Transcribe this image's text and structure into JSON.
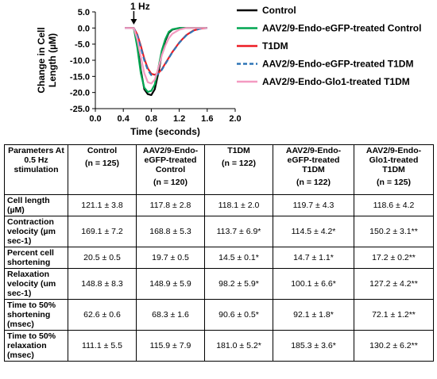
{
  "chart_data": {
    "type": "line",
    "annotation": "1 Hz",
    "xlabel": "Time (seconds)",
    "ylabel": "Change in Cell Length (µM)",
    "xlim": [
      0.0,
      2.0
    ],
    "ylim": [
      -25.0,
      5.0
    ],
    "x_ticks": [
      "0.0",
      "0.4",
      "0.8",
      "1.2",
      "1.6",
      "2.0"
    ],
    "y_ticks": [
      "5.0",
      "0.0",
      "-5.0",
      "-10.0",
      "-15.0",
      "-20.0",
      "-25.0"
    ],
    "series": [
      {
        "name": "Control",
        "color": "#000000",
        "dash": "solid",
        "x": [
          0.42,
          0.55,
          0.6,
          0.65,
          0.7,
          0.75,
          0.8,
          0.85,
          0.9,
          0.95,
          1.0,
          1.05,
          1.1,
          1.2,
          1.3,
          1.4,
          1.6
        ],
        "y": [
          0.0,
          0.0,
          -5.0,
          -13.0,
          -19.0,
          -20.5,
          -20.8,
          -19.0,
          -14.0,
          -8.0,
          -4.0,
          -1.5,
          -0.5,
          0.0,
          0.0,
          0.0,
          0.0
        ]
      },
      {
        "name": "AAV2/9-Endo-eGFP-treated Control",
        "color": "#00a651",
        "dash": "solid",
        "x": [
          0.42,
          0.55,
          0.6,
          0.65,
          0.7,
          0.75,
          0.8,
          0.85,
          0.9,
          0.95,
          1.0,
          1.05,
          1.1,
          1.2,
          1.3,
          1.4,
          1.6
        ],
        "y": [
          0.0,
          0.0,
          -6.0,
          -14.0,
          -18.5,
          -19.8,
          -19.5,
          -17.5,
          -12.5,
          -7.0,
          -3.5,
          -1.2,
          -0.4,
          0.0,
          0.0,
          0.0,
          0.0
        ]
      },
      {
        "name": "T1DM",
        "color": "#ed1c24",
        "dash": "solid",
        "x": [
          0.42,
          0.55,
          0.6,
          0.65,
          0.7,
          0.75,
          0.8,
          0.85,
          0.9,
          0.95,
          1.0,
          1.1,
          1.2,
          1.3,
          1.4,
          1.5,
          1.6
        ],
        "y": [
          0.0,
          0.0,
          -2.0,
          -5.5,
          -9.5,
          -12.5,
          -14.2,
          -14.5,
          -14.0,
          -12.8,
          -11.0,
          -7.5,
          -4.5,
          -2.2,
          -0.8,
          -0.2,
          0.0
        ]
      },
      {
        "name": "AAV2/9-Endo-eGFP-treated T1DM",
        "color": "#2e75b6",
        "dash": "6,4",
        "x": [
          0.42,
          0.55,
          0.6,
          0.65,
          0.7,
          0.75,
          0.8,
          0.85,
          0.9,
          0.95,
          1.0,
          1.1,
          1.2,
          1.3,
          1.4,
          1.5,
          1.6
        ],
        "y": [
          0.0,
          0.0,
          -2.2,
          -6.0,
          -10.0,
          -13.0,
          -14.6,
          -14.8,
          -14.2,
          -13.0,
          -11.2,
          -7.6,
          -4.6,
          -2.3,
          -0.9,
          -0.2,
          0.0
        ]
      },
      {
        "name": "AAV2/9-Endo-Glo1-treated T1DM",
        "color": "#f49ac1",
        "dash": "solid",
        "x": [
          0.42,
          0.55,
          0.6,
          0.65,
          0.7,
          0.75,
          0.8,
          0.85,
          0.9,
          0.95,
          1.0,
          1.05,
          1.1,
          1.2,
          1.3,
          1.4,
          1.6
        ],
        "y": [
          0.0,
          0.0,
          -3.5,
          -9.0,
          -14.0,
          -16.8,
          -17.2,
          -16.0,
          -12.5,
          -8.5,
          -5.5,
          -3.2,
          -1.8,
          -0.5,
          0.0,
          0.0,
          0.0
        ]
      }
    ]
  },
  "table": {
    "header_param": "Parameters At 0.5 Hz stimulation",
    "columns": [
      {
        "label": "Control",
        "n": "(n = 125)"
      },
      {
        "label": "AAV2/9-Endo-eGFP-treated Control",
        "n": "(n = 120)"
      },
      {
        "label": "T1DM",
        "n": "(n = 122)"
      },
      {
        "label": "AAV2/9-Endo-eGFP-treated T1DM",
        "n": "(n = 122)"
      },
      {
        "label": "AAV2/9-Endo-Glo1-treated T1DM",
        "n": "(n = 125)"
      }
    ],
    "rows": [
      {
        "param": "Cell length (µM)",
        "values": [
          "121.1 ± 3.8",
          "117.8 ± 2.8",
          "118.1 ± 2.0",
          "119.7 ± 4.3",
          "118.6 ± 4.2"
        ]
      },
      {
        "param": "Contraction velocity (µm sec-1)",
        "values": [
          "169.1 ± 7.2",
          "168.8 ± 5.3",
          "113.7 ± 6.9*",
          "114.5 ± 4.2*",
          "150.2 ± 3.1**"
        ]
      },
      {
        "param": "Percent cell shortening",
        "values": [
          "20.5 ± 0.5",
          "19.7 ± 0.5",
          "14.5 ± 0.1*",
          "14.7 ± 1.1*",
          "17.2 ± 0.2**"
        ]
      },
      {
        "param": "Relaxation velocity (um sec-1)",
        "values": [
          "148.8 ± 8.3",
          "148.9 ± 5.9",
          "98.2 ± 5.9*",
          "100.1 ± 6.6*",
          "127.2 ± 4.2**"
        ]
      },
      {
        "param": "Time to 50% shortening (msec)",
        "values": [
          "62.6 ± 0.6",
          "68.3 ± 1.6",
          "90.6 ± 0.5*",
          "92.1 ± 1.8*",
          "72.1 ± 1.2**"
        ]
      },
      {
        "param": "Time to 50% relaxation (msec)",
        "values": [
          "111.1 ± 5.5",
          "115.9 ± 7.9",
          "181.0 ± 5.2*",
          "185.3 ± 3.6*",
          "130.2 ± 6.2**"
        ]
      }
    ]
  }
}
